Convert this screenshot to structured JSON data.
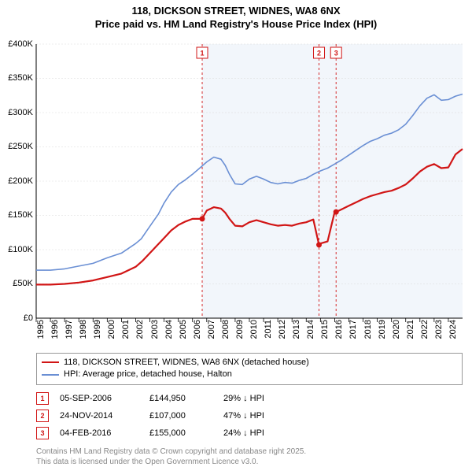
{
  "title_line1": "118, DICKSON STREET, WIDNES, WA8 6NX",
  "title_line2": "Price paid vs. HM Land Registry's House Price Index (HPI)",
  "chart": {
    "type": "line",
    "background_color": "#ffffff",
    "shaded_color": "#f2f6fb",
    "grid_color": "#d9d9d9",
    "axis_color": "#000000",
    "label_fontsize": 11,
    "x_min": 1995,
    "x_max": 2025,
    "x_ticks": [
      1995,
      1996,
      1997,
      1998,
      1999,
      2000,
      2001,
      2002,
      2003,
      2004,
      2005,
      2006,
      2007,
      2008,
      2009,
      2010,
      2011,
      2012,
      2013,
      2014,
      2015,
      2016,
      2017,
      2018,
      2019,
      2020,
      2021,
      2022,
      2023,
      2024
    ],
    "y_min": 0,
    "y_max": 400000,
    "y_tick_step": 50000,
    "y_tick_labels": [
      "£0",
      "£50K",
      "£100K",
      "£150K",
      "£200K",
      "£250K",
      "£300K",
      "£350K",
      "£400K"
    ],
    "shaded_start_x": 2006.68,
    "series": [
      {
        "name": "HPI: Average price, detached house, Halton",
        "color": "#6a8fd4",
        "line_width": 1.6,
        "points": [
          [
            1995,
            70
          ],
          [
            1996,
            70
          ],
          [
            1997,
            72
          ],
          [
            1998,
            76
          ],
          [
            1999,
            80
          ],
          [
            2000,
            88
          ],
          [
            2001,
            95
          ],
          [
            2002,
            109
          ],
          [
            2002.4,
            116
          ],
          [
            2002.8,
            128
          ],
          [
            2003.2,
            140
          ],
          [
            2003.6,
            152
          ],
          [
            2004,
            168
          ],
          [
            2004.5,
            184
          ],
          [
            2005,
            195
          ],
          [
            2005.5,
            202
          ],
          [
            2006,
            210
          ],
          [
            2006.5,
            219
          ],
          [
            2007,
            228
          ],
          [
            2007.5,
            235
          ],
          [
            2008,
            232
          ],
          [
            2008.3,
            223
          ],
          [
            2008.6,
            210
          ],
          [
            2009,
            196
          ],
          [
            2009.5,
            195
          ],
          [
            2010,
            203
          ],
          [
            2010.5,
            207
          ],
          [
            2011,
            203
          ],
          [
            2011.5,
            198
          ],
          [
            2012,
            196
          ],
          [
            2012.5,
            198
          ],
          [
            2013,
            197
          ],
          [
            2013.5,
            201
          ],
          [
            2014,
            204
          ],
          [
            2014.5,
            210
          ],
          [
            2015,
            215
          ],
          [
            2015.5,
            219
          ],
          [
            2016,
            225
          ],
          [
            2016.5,
            231
          ],
          [
            2017,
            238
          ],
          [
            2017.5,
            245
          ],
          [
            2018,
            252
          ],
          [
            2018.5,
            258
          ],
          [
            2019,
            262
          ],
          [
            2019.5,
            267
          ],
          [
            2020,
            270
          ],
          [
            2020.5,
            275
          ],
          [
            2021,
            283
          ],
          [
            2021.5,
            296
          ],
          [
            2022,
            310
          ],
          [
            2022.5,
            321
          ],
          [
            2023,
            326
          ],
          [
            2023.5,
            318
          ],
          [
            2024,
            319
          ],
          [
            2024.5,
            324
          ],
          [
            2025,
            327
          ]
        ]
      },
      {
        "name": "118, DICKSON STREET, WIDNES, WA8 6NX (detached house)",
        "color": "#d11515",
        "line_width": 2.2,
        "points": [
          [
            1995,
            49
          ],
          [
            1996,
            49
          ],
          [
            1997,
            50
          ],
          [
            1998,
            52
          ],
          [
            1999,
            55
          ],
          [
            2000,
            60
          ],
          [
            2001,
            65
          ],
          [
            2002,
            75
          ],
          [
            2002.5,
            84
          ],
          [
            2003,
            95
          ],
          [
            2003.5,
            106
          ],
          [
            2004,
            117
          ],
          [
            2004.5,
            128
          ],
          [
            2005,
            136
          ],
          [
            2005.5,
            141
          ],
          [
            2006,
            145
          ],
          [
            2006.68,
            144.95
          ],
          [
            2007,
            157
          ],
          [
            2007.5,
            162
          ],
          [
            2008,
            160
          ],
          [
            2008.3,
            154
          ],
          [
            2008.6,
            145
          ],
          [
            2009,
            135
          ],
          [
            2009.5,
            134
          ],
          [
            2010,
            140
          ],
          [
            2010.5,
            143
          ],
          [
            2011,
            140
          ],
          [
            2011.5,
            137
          ],
          [
            2012,
            135
          ],
          [
            2012.5,
            136
          ],
          [
            2013,
            135
          ],
          [
            2013.5,
            138
          ],
          [
            2014,
            140
          ],
          [
            2014.5,
            144
          ],
          [
            2014.9,
            107
          ],
          [
            2015,
            109
          ],
          [
            2015.5,
            112
          ],
          [
            2016,
            155
          ],
          [
            2016.1,
            155
          ],
          [
            2016.5,
            159
          ],
          [
            2017,
            164
          ],
          [
            2017.5,
            169
          ],
          [
            2018,
            174
          ],
          [
            2018.5,
            178
          ],
          [
            2019,
            181
          ],
          [
            2019.5,
            184
          ],
          [
            2020,
            186
          ],
          [
            2020.5,
            190
          ],
          [
            2021,
            195
          ],
          [
            2021.5,
            204
          ],
          [
            2022,
            214
          ],
          [
            2022.5,
            221
          ],
          [
            2023,
            225
          ],
          [
            2023.5,
            219
          ],
          [
            2024,
            220
          ],
          [
            2024.5,
            239
          ],
          [
            2025,
            247
          ]
        ]
      }
    ],
    "sale_points": [
      {
        "x": 2006.68,
        "y": 144.95,
        "color": "#d11515"
      },
      {
        "x": 2014.9,
        "y": 107,
        "color": "#d11515"
      },
      {
        "x": 2016.1,
        "y": 155,
        "color": "#d11515"
      }
    ],
    "sale_markers": [
      {
        "label": "1",
        "x": 2006.68,
        "color": "#d11515"
      },
      {
        "label": "2",
        "x": 2014.9,
        "color": "#d11515"
      },
      {
        "label": "3",
        "x": 2016.1,
        "color": "#d11515"
      }
    ]
  },
  "legend": {
    "items": [
      {
        "color": "#d11515",
        "label": "118, DICKSON STREET, WIDNES, WA8 6NX (detached house)"
      },
      {
        "color": "#6a8fd4",
        "label": "HPI: Average price, detached house, Halton"
      }
    ]
  },
  "sales_table": [
    {
      "marker": "1",
      "color": "#d11515",
      "date": "05-SEP-2006",
      "price": "£144,950",
      "pct": "29% ↓ HPI"
    },
    {
      "marker": "2",
      "color": "#d11515",
      "date": "24-NOV-2014",
      "price": "£107,000",
      "pct": "47% ↓ HPI"
    },
    {
      "marker": "3",
      "color": "#d11515",
      "date": "04-FEB-2016",
      "price": "£155,000",
      "pct": "24% ↓ HPI"
    }
  ],
  "attribution_line1": "Contains HM Land Registry data © Crown copyright and database right 2025.",
  "attribution_line2": "This data is licensed under the Open Government Licence v3.0."
}
